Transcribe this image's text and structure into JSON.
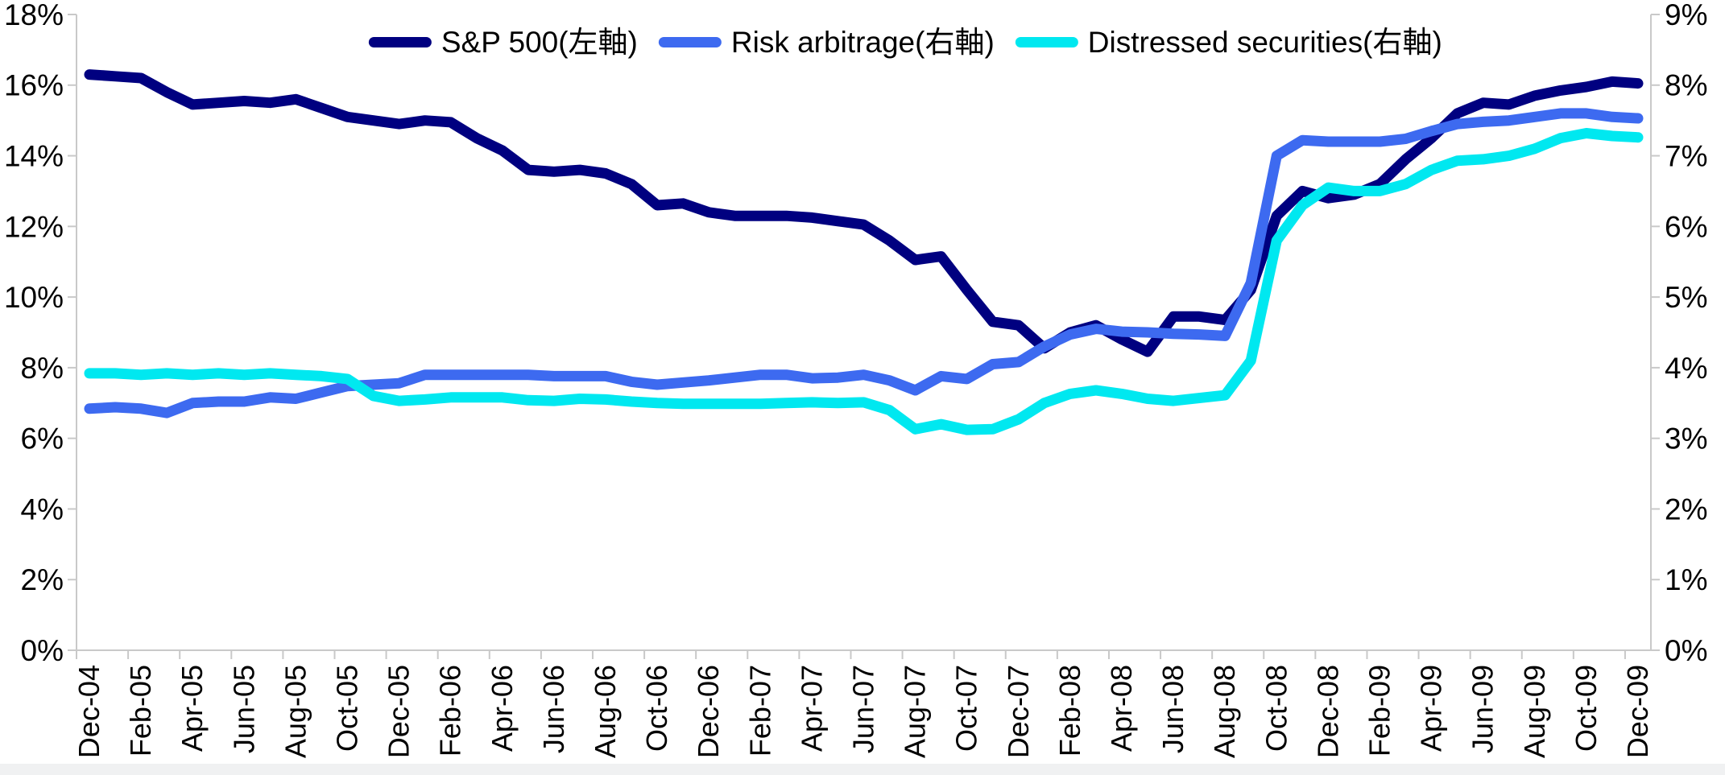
{
  "colors": {
    "background": "#ffffff",
    "axis_line": "#c9c9c9",
    "text": "#000000",
    "bottom_strip": "#f0f1f2",
    "sp500": "#000080",
    "risk_arbitrage": "#3d6af0",
    "distressed": "#00e8f0"
  },
  "chart_data": {
    "type": "line",
    "title": "",
    "grid": "off",
    "legend_position": "top-center",
    "legend": [
      {
        "label": "S&P 500(左軸)",
        "color": "#000080",
        "axis": "left"
      },
      {
        "label": "Risk arbitrage(右軸)",
        "color": "#3d6af0",
        "axis": "right"
      },
      {
        "label": "Distressed securities(右軸)",
        "color": "#00e8f0",
        "axis": "right"
      }
    ],
    "axes": {
      "left": {
        "min": 0,
        "max": 18,
        "step": 2,
        "tick_labels": [
          "0%",
          "2%",
          "4%",
          "6%",
          "8%",
          "10%",
          "12%",
          "14%",
          "16%",
          "18%"
        ]
      },
      "right": {
        "min": 0,
        "max": 9,
        "step": 1,
        "tick_labels": [
          "0%",
          "1%",
          "2%",
          "3%",
          "4%",
          "5%",
          "6%",
          "7%",
          "8%",
          "9%"
        ]
      }
    },
    "x_tick_labels": [
      "Dec-04",
      "Feb-05",
      "Apr-05",
      "Jun-05",
      "Aug-05",
      "Oct-05",
      "Dec-05",
      "Feb-06",
      "Apr-06",
      "Jun-06",
      "Aug-06",
      "Oct-06",
      "Dec-06",
      "Feb-07",
      "Apr-07",
      "Jun-07",
      "Aug-07",
      "Oct-07",
      "Dec-07",
      "Feb-08",
      "Apr-08",
      "Jun-08",
      "Aug-08",
      "Oct-08",
      "Dec-08",
      "Feb-09",
      "Apr-09",
      "Jun-09",
      "Aug-09",
      "Oct-09",
      "Dec-09"
    ],
    "x_months": [
      "Dec-04",
      "Jan-05",
      "Feb-05",
      "Mar-05",
      "Apr-05",
      "May-05",
      "Jun-05",
      "Jul-05",
      "Aug-05",
      "Sep-05",
      "Oct-05",
      "Nov-05",
      "Dec-05",
      "Jan-06",
      "Feb-06",
      "Mar-06",
      "Apr-06",
      "May-06",
      "Jun-06",
      "Jul-06",
      "Aug-06",
      "Sep-06",
      "Oct-06",
      "Nov-06",
      "Dec-06",
      "Jan-07",
      "Feb-07",
      "Mar-07",
      "Apr-07",
      "May-07",
      "Jun-07",
      "Jul-07",
      "Aug-07",
      "Sep-07",
      "Oct-07",
      "Nov-07",
      "Dec-07",
      "Jan-08",
      "Feb-08",
      "Mar-08",
      "Apr-08",
      "May-08",
      "Jun-08",
      "Jul-08",
      "Aug-08",
      "Sep-08",
      "Oct-08",
      "Nov-08",
      "Dec-08",
      "Jan-09",
      "Feb-09",
      "Mar-09",
      "Apr-09",
      "May-09",
      "Jun-09",
      "Jul-09",
      "Aug-09",
      "Sep-09",
      "Oct-09",
      "Nov-09",
      "Dec-09"
    ],
    "series": [
      {
        "name": "S&P 500(左軸)",
        "axis": "left",
        "color": "#000080",
        "values": [
          16.3,
          16.25,
          16.2,
          15.8,
          15.45,
          15.5,
          15.55,
          15.5,
          15.6,
          15.35,
          15.1,
          15.0,
          14.9,
          15.0,
          14.95,
          14.5,
          14.15,
          13.6,
          13.55,
          13.6,
          13.5,
          13.2,
          12.6,
          12.65,
          12.4,
          12.3,
          12.3,
          12.3,
          12.25,
          12.15,
          12.05,
          11.6,
          11.05,
          11.15,
          10.2,
          9.3,
          9.2,
          8.55,
          9.0,
          9.2,
          8.8,
          8.45,
          9.45,
          9.45,
          9.35,
          10.2,
          12.3,
          13.0,
          12.8,
          12.9,
          13.2,
          13.9,
          14.5,
          15.2,
          15.5,
          15.45,
          15.7,
          15.85,
          15.95,
          16.1,
          16.05
        ]
      },
      {
        "name": "Risk arbitrage(右軸)",
        "axis": "right",
        "color": "#3d6af0",
        "values": [
          3.42,
          3.44,
          3.42,
          3.36,
          3.5,
          3.52,
          3.52,
          3.58,
          3.56,
          3.65,
          3.74,
          3.76,
          3.78,
          3.9,
          3.9,
          3.9,
          3.9,
          3.9,
          3.88,
          3.88,
          3.88,
          3.8,
          3.76,
          3.79,
          3.82,
          3.86,
          3.9,
          3.9,
          3.85,
          3.86,
          3.9,
          3.82,
          3.68,
          3.88,
          3.84,
          4.05,
          4.08,
          4.3,
          4.47,
          4.55,
          4.51,
          4.5,
          4.48,
          4.47,
          4.45,
          5.2,
          7.0,
          7.22,
          7.2,
          7.2,
          7.2,
          7.24,
          7.35,
          7.45,
          7.48,
          7.5,
          7.55,
          7.6,
          7.6,
          7.55,
          7.53
        ]
      },
      {
        "name": "Distressed securities(右軸)",
        "axis": "right",
        "color": "#00e8f0",
        "values": [
          3.92,
          3.92,
          3.9,
          3.92,
          3.9,
          3.92,
          3.9,
          3.92,
          3.9,
          3.88,
          3.84,
          3.6,
          3.53,
          3.55,
          3.58,
          3.58,
          3.58,
          3.54,
          3.53,
          3.56,
          3.55,
          3.52,
          3.5,
          3.49,
          3.49,
          3.49,
          3.49,
          3.5,
          3.51,
          3.5,
          3.51,
          3.4,
          3.13,
          3.2,
          3.12,
          3.13,
          3.27,
          3.5,
          3.63,
          3.68,
          3.63,
          3.56,
          3.53,
          3.57,
          3.61,
          4.1,
          5.8,
          6.3,
          6.55,
          6.5,
          6.5,
          6.6,
          6.8,
          6.93,
          6.95,
          7.0,
          7.1,
          7.25,
          7.32,
          7.28,
          7.26
        ]
      }
    ]
  }
}
